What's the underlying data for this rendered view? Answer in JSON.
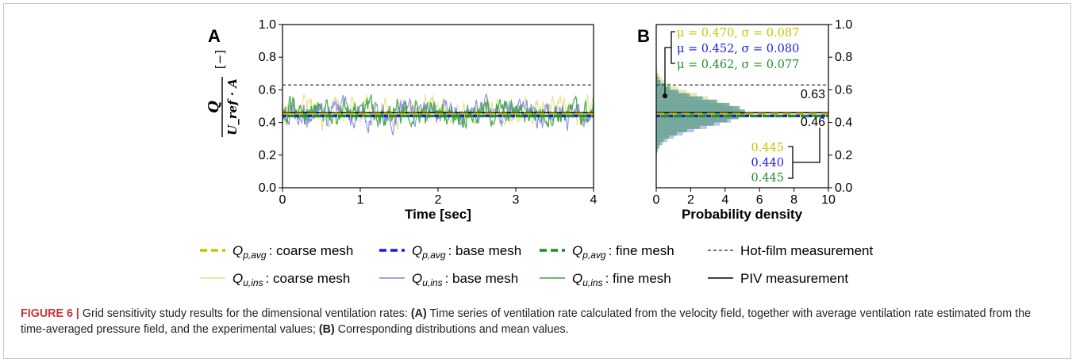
{
  "figure": {
    "caption_label": "FIGURE 6 |",
    "caption_intro": " Grid sensitivity study results for the dimensional ventilation rates: ",
    "caption_a_label": "(A)",
    "caption_a_text": " Time series of ventilation rate calculated from the velocity field, together with average ventilation rate estimated from the time-averaged pressure field, and the experimental values; ",
    "caption_b_label": "(B)",
    "caption_b_text": " Corresponding distributions and mean values."
  },
  "colors": {
    "coarse": "#c8c400",
    "base": "#1a1ae6",
    "fine": "#1e8c2a",
    "coarse_light": "#e2e088",
    "base_light": "#8080ee",
    "fine_light": "#3aa444",
    "hist_coarse": "#dfe2a0",
    "hist_base": "#a8b8e6",
    "hist_fine": "#5f9f88"
  },
  "chart_data": [
    {
      "type": "line",
      "panel_label": "A",
      "xlabel": "Time [sec]",
      "ylabel_main": "Q",
      "ylabel_denom": "U_ref · A",
      "ylabel_unit": "[−]",
      "xlim": [
        0,
        4
      ],
      "ylim": [
        0,
        1.0
      ],
      "xticks": [
        "0",
        "1",
        "2",
        "3",
        "4"
      ],
      "yticks": [
        "0.0",
        "0.2",
        "0.4",
        "0.6",
        "0.8",
        "1.0"
      ],
      "reference_lines": [
        {
          "name": "Hot-film measurement",
          "y": 0.63,
          "style": "dashed"
        },
        {
          "name": "PIV measurement",
          "y": 0.46,
          "style": "solid"
        }
      ],
      "averages": [
        {
          "name": "Q_p,avg : coarse mesh",
          "y": 0.445
        },
        {
          "name": "Q_p,avg : base mesh",
          "y": 0.44
        },
        {
          "name": "Q_p,avg : fine mesh",
          "y": 0.445
        }
      ],
      "series": [
        {
          "name": "Q_u,ins : coarse mesh",
          "mean": 0.47,
          "std": 0.087,
          "min": 0.17,
          "max": 0.73
        },
        {
          "name": "Q_u,ins : base mesh",
          "mean": 0.452,
          "std": 0.08,
          "min": 0.2,
          "max": 0.75
        },
        {
          "name": "Q_u,ins : fine mesh",
          "mean": 0.462,
          "std": 0.077,
          "min": 0.23,
          "max": 0.7
        }
      ]
    },
    {
      "type": "histogram",
      "panel_label": "B",
      "xlabel": "Probability density",
      "xlim": [
        0,
        10
      ],
      "ylim": [
        0,
        1.0
      ],
      "xticks": [
        "0",
        "2",
        "4",
        "6",
        "8",
        "10"
      ],
      "yticks": [
        "0.0",
        "0.2",
        "0.4",
        "0.6",
        "0.8",
        "1.0"
      ],
      "ref_labels": [
        "0.63",
        "0.46"
      ],
      "ref_values": [
        0.63,
        0.46
      ],
      "stats": [
        "μ = 0.470, σ = 0.087",
        "μ = 0.452, σ = 0.080",
        "μ = 0.462, σ = 0.077"
      ],
      "avg_labels": [
        "0.445",
        "0.440",
        "0.445"
      ],
      "series": [
        {
          "name": "coarse mesh",
          "mean": 0.47,
          "std": 0.087
        },
        {
          "name": "base mesh",
          "mean": 0.452,
          "std": 0.08
        },
        {
          "name": "fine mesh",
          "mean": 0.462,
          "std": 0.077
        }
      ]
    }
  ],
  "legend": {
    "row1": [
      {
        "sym": "Q",
        "sub": "p,avg",
        "text": ": coarse mesh"
      },
      {
        "sym": "Q",
        "sub": "p,avg",
        "text": ": base mesh"
      },
      {
        "sym": "Q",
        "sub": "p,avg",
        "text": ": fine mesh"
      },
      {
        "text": "Hot-film measurement"
      }
    ],
    "row2": [
      {
        "sym": "Q",
        "sub": "u,ins",
        "text": ": coarse mesh"
      },
      {
        "sym": "Q",
        "sub": "u,ins",
        "text": ": base mesh"
      },
      {
        "sym": "Q",
        "sub": "u,ins",
        "text": ": fine mesh"
      },
      {
        "text": "PIV measurement"
      }
    ]
  }
}
